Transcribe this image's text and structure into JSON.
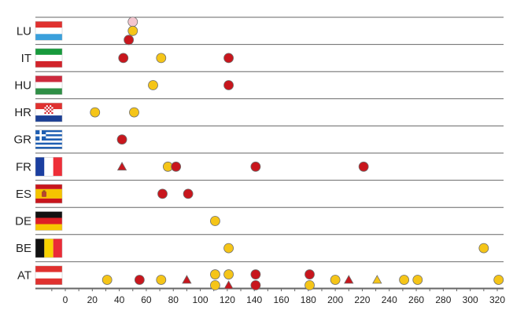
{
  "chart_data": {
    "type": "scatter",
    "title": "",
    "xlabel": "",
    "ylabel": "",
    "xlim": [
      -20,
      330
    ],
    "x_ticks": [
      0,
      20,
      40,
      60,
      80,
      100,
      120,
      140,
      160,
      180,
      200,
      220,
      240,
      260,
      280,
      300,
      320
    ],
    "grid": false,
    "marker_colors": {
      "red": "#c8161d",
      "yellow": "#f5c518",
      "pink": "#f4c6cf",
      "stroke": "#6e6e6e"
    },
    "rows": [
      {
        "code": "LU",
        "flag": "luxembourg-flag",
        "points": [
          {
            "x": 50,
            "level": 0,
            "shape": "circle",
            "color": "pink"
          },
          {
            "x": 50,
            "level": 1,
            "shape": "circle",
            "color": "yellow"
          },
          {
            "x": 47,
            "level": 2,
            "shape": "circle",
            "color": "red"
          }
        ]
      },
      {
        "code": "IT",
        "flag": "italy-flag",
        "points": [
          {
            "x": 43,
            "level": 1,
            "shape": "circle",
            "color": "red"
          },
          {
            "x": 71,
            "level": 1,
            "shape": "circle",
            "color": "yellow"
          },
          {
            "x": 121,
            "level": 1,
            "shape": "circle",
            "color": "red"
          }
        ]
      },
      {
        "code": "HU",
        "flag": "hungary-flag",
        "points": [
          {
            "x": 65,
            "level": 1,
            "shape": "circle",
            "color": "yellow"
          },
          {
            "x": 121,
            "level": 1,
            "shape": "circle",
            "color": "red"
          }
        ]
      },
      {
        "code": "HR",
        "flag": "croatia-flag",
        "points": [
          {
            "x": 22,
            "level": 1,
            "shape": "circle",
            "color": "yellow"
          },
          {
            "x": 51,
            "level": 1,
            "shape": "circle",
            "color": "yellow"
          }
        ]
      },
      {
        "code": "GR",
        "flag": "greece-flag",
        "points": [
          {
            "x": 42,
            "level": 1,
            "shape": "circle",
            "color": "red"
          }
        ]
      },
      {
        "code": "FR",
        "flag": "france-flag",
        "points": [
          {
            "x": 42,
            "level": 1,
            "shape": "triangle",
            "color": "red"
          },
          {
            "x": 76,
            "level": 1,
            "shape": "circle",
            "color": "yellow"
          },
          {
            "x": 82,
            "level": 1,
            "shape": "circle",
            "color": "red"
          },
          {
            "x": 141,
            "level": 1,
            "shape": "circle",
            "color": "red"
          },
          {
            "x": 221,
            "level": 1,
            "shape": "circle",
            "color": "red"
          }
        ]
      },
      {
        "code": "ES",
        "flag": "spain-flag",
        "points": [
          {
            "x": 72,
            "level": 1,
            "shape": "circle",
            "color": "red"
          },
          {
            "x": 91,
            "level": 1,
            "shape": "circle",
            "color": "red"
          }
        ]
      },
      {
        "code": "DE",
        "flag": "germany-flag",
        "points": [
          {
            "x": 111,
            "level": 1,
            "shape": "circle",
            "color": "yellow"
          }
        ]
      },
      {
        "code": "BE",
        "flag": "belgium-flag",
        "points": [
          {
            "x": 121,
            "level": 1,
            "shape": "circle",
            "color": "yellow"
          },
          {
            "x": 310,
            "level": 1,
            "shape": "circle",
            "color": "yellow"
          }
        ]
      },
      {
        "code": "AT",
        "flag": "austria-flag",
        "points": [
          {
            "x": 31,
            "level": 1.5,
            "shape": "circle",
            "color": "yellow"
          },
          {
            "x": 55,
            "level": 1.5,
            "shape": "circle",
            "color": "red"
          },
          {
            "x": 71,
            "level": 1.5,
            "shape": "circle",
            "color": "yellow"
          },
          {
            "x": 90,
            "level": 1.5,
            "shape": "triangle",
            "color": "red"
          },
          {
            "x": 111,
            "level": 0.9,
            "shape": "circle",
            "color": "yellow"
          },
          {
            "x": 111,
            "level": 2.1,
            "shape": "circle",
            "color": "yellow"
          },
          {
            "x": 121,
            "level": 0.9,
            "shape": "circle",
            "color": "yellow"
          },
          {
            "x": 121,
            "level": 2.1,
            "shape": "triangle",
            "color": "red"
          },
          {
            "x": 141,
            "level": 0.9,
            "shape": "circle",
            "color": "red"
          },
          {
            "x": 141,
            "level": 2.1,
            "shape": "circle",
            "color": "red"
          },
          {
            "x": 181,
            "level": 0.9,
            "shape": "circle",
            "color": "red"
          },
          {
            "x": 181,
            "level": 2.1,
            "shape": "circle",
            "color": "yellow"
          },
          {
            "x": 200,
            "level": 1.5,
            "shape": "circle",
            "color": "yellow"
          },
          {
            "x": 210,
            "level": 1.5,
            "shape": "triangle",
            "color": "red"
          },
          {
            "x": 231,
            "level": 1.5,
            "shape": "triangle",
            "color": "yellow"
          },
          {
            "x": 251,
            "level": 1.5,
            "shape": "circle",
            "color": "yellow"
          },
          {
            "x": 261,
            "level": 1.5,
            "shape": "circle",
            "color": "yellow"
          },
          {
            "x": 321,
            "level": 1.5,
            "shape": "circle",
            "color": "yellow"
          }
        ]
      }
    ]
  }
}
